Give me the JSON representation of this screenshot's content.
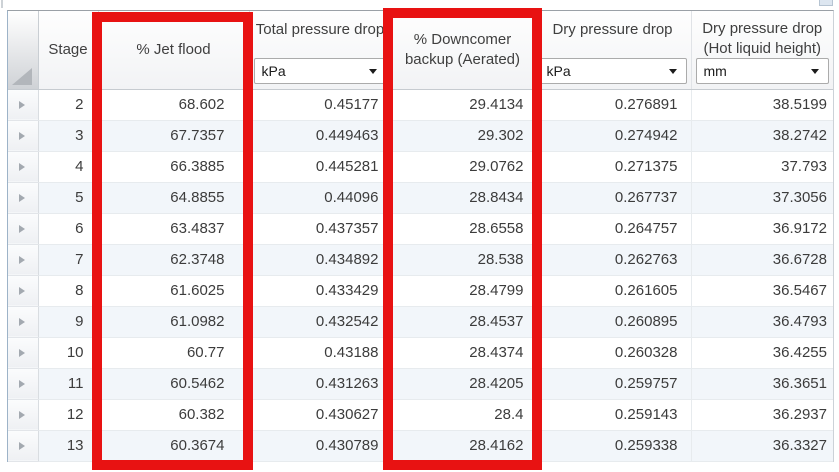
{
  "table": {
    "columns": [
      {
        "key": "stage",
        "label": "Stage"
      },
      {
        "key": "jet-flood",
        "label": "% Jet flood"
      },
      {
        "key": "total-pd",
        "label": "Total pressure drop",
        "unit": "kPa"
      },
      {
        "key": "downcomer",
        "label": "% Downcomer backup (Aerated)"
      },
      {
        "key": "dry-pd",
        "label": "Dry pressure drop",
        "unit": "kPa"
      },
      {
        "key": "dry-pd-mm",
        "label": "Dry pressure drop (Hot liquid height)",
        "unit": "mm"
      }
    ],
    "rows": [
      [
        "2",
        "68.602",
        "0.45177",
        "29.4134",
        "0.276891",
        "38.5199"
      ],
      [
        "3",
        "67.7357",
        "0.449463",
        "29.302",
        "0.274942",
        "38.2742"
      ],
      [
        "4",
        "66.3885",
        "0.445281",
        "29.0762",
        "0.271375",
        "37.793"
      ],
      [
        "5",
        "64.8855",
        "0.44096",
        "28.8434",
        "0.267737",
        "37.3056"
      ],
      [
        "6",
        "63.4837",
        "0.437357",
        "28.6558",
        "0.264757",
        "36.9172"
      ],
      [
        "7",
        "62.3748",
        "0.434892",
        "28.538",
        "0.262763",
        "36.6728"
      ],
      [
        "8",
        "61.6025",
        "0.433429",
        "28.4799",
        "0.261605",
        "36.5467"
      ],
      [
        "9",
        "61.0982",
        "0.432542",
        "28.4537",
        "0.260895",
        "36.4793"
      ],
      [
        "10",
        "60.77",
        "0.43188",
        "28.4374",
        "0.260328",
        "36.4255"
      ],
      [
        "11",
        "60.5462",
        "0.431263",
        "28.4205",
        "0.259757",
        "36.3651"
      ],
      [
        "12",
        "60.382",
        "0.430627",
        "28.4",
        "0.259143",
        "36.2937"
      ],
      [
        "13",
        "60.3674",
        "0.430789",
        "28.4162",
        "0.259338",
        "36.3327"
      ]
    ]
  },
  "annotations": {
    "highlight_color": "#e81212",
    "highlighted_columns": [
      "% Jet flood",
      "% Downcomer backup (Aerated)"
    ]
  }
}
